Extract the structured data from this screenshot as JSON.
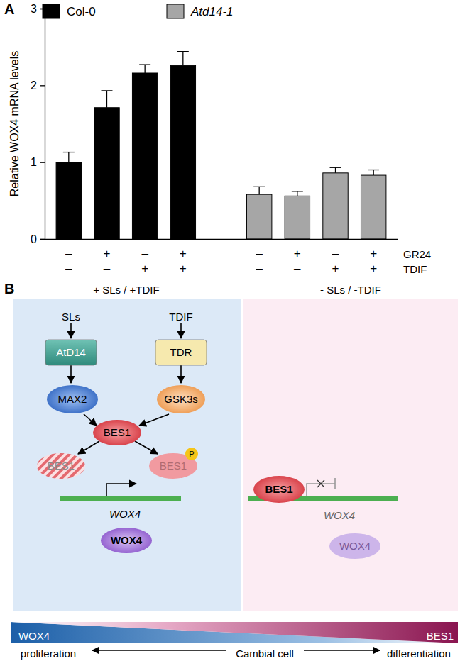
{
  "chart_data": {
    "type": "bar",
    "panel_label": "A",
    "y_label": "Relative WOX4 mRNA levels",
    "categories": [
      null,
      null,
      null,
      null,
      null,
      null,
      null,
      null,
      null
    ],
    "x_rows": [
      {
        "label": "GR24",
        "marks": [
          "–",
          "+",
          "–",
          "+",
          null,
          "–",
          "+",
          "–",
          "+"
        ]
      },
      {
        "label": "TDIF",
        "marks": [
          "–",
          "–",
          "+",
          "+",
          null,
          "–",
          "–",
          "+",
          "+"
        ]
      }
    ],
    "series": [
      {
        "name": "Col-0",
        "color": "#000000",
        "values": [
          1.0,
          1.71,
          2.16,
          2.26,
          null,
          null,
          null,
          null,
          null
        ],
        "errors": [
          0.13,
          0.22,
          0.11,
          0.18,
          null,
          null,
          null,
          null,
          null
        ]
      },
      {
        "name": "Atd14-1",
        "color": "#a6a6a6",
        "values": [
          null,
          null,
          null,
          null,
          null,
          0.58,
          0.56,
          0.86,
          0.83
        ],
        "errors": [
          null,
          null,
          null,
          null,
          null,
          0.1,
          0.06,
          0.07,
          0.07
        ]
      }
    ],
    "ylim": [
      0,
      3
    ],
    "yticks": [
      0,
      1,
      2,
      3
    ],
    "legend": "top"
  },
  "diagram": {
    "panel_label": "B",
    "panels": [
      {
        "title": "+ SLs / +TDIF"
      },
      {
        "title": "- SLs / -TDIF"
      }
    ],
    "nodes": [
      {
        "label": "SLs"
      },
      {
        "label": "AtD14"
      },
      {
        "label": "MAX2"
      },
      {
        "label": "TDIF"
      },
      {
        "label": "TDR"
      },
      {
        "label": "GSK3s"
      },
      {
        "label": "BES1"
      },
      {
        "label": "BES1"
      },
      {
        "label": "BES1"
      },
      {
        "label": "P"
      },
      {
        "label": "WOX4"
      },
      {
        "label": "WOX4"
      },
      {
        "label": "BES1"
      },
      {
        "label": "WOX4"
      },
      {
        "label": "WOX4"
      },
      {
        "label": "WOX4"
      },
      {
        "label": "BES1"
      },
      {
        "label": "proliferation"
      },
      {
        "label": "Cambial cell"
      },
      {
        "label": "differentiation"
      }
    ]
  }
}
